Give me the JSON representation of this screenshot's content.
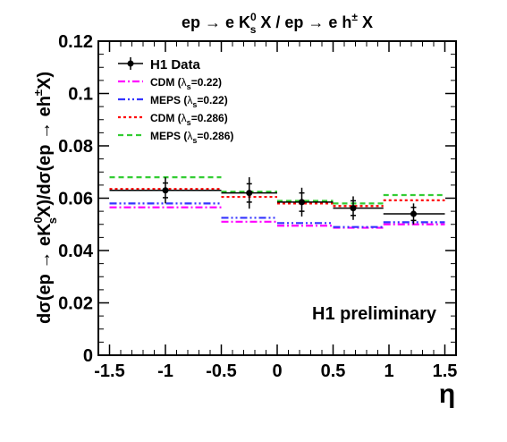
{
  "chart_data": {
    "type": "step",
    "title_parts": [
      "ep → e K",
      "0",
      "s",
      " X / ep → e h",
      "±",
      " X"
    ],
    "xlabel": "η",
    "ylabel_parts": [
      "dσ(ep → eK",
      "0",
      "s",
      "X)/dσ(ep → eh",
      "±",
      "X)"
    ],
    "xlim": [
      -1.6,
      1.6
    ],
    "ylim": [
      0,
      0.12
    ],
    "xticks": [
      -1.5,
      -1,
      -0.5,
      0,
      0.5,
      1,
      1.5
    ],
    "xtick_labels": [
      "-1.5",
      "-1",
      "-0.5",
      "0",
      "0.5",
      "1",
      "1.5"
    ],
    "yticks": [
      0,
      0.02,
      0.04,
      0.06,
      0.08,
      0.1,
      0.12
    ],
    "ytick_labels": [
      "0",
      "0.02",
      "0.04",
      "0.06",
      "0.08",
      "0.1",
      "0.12"
    ],
    "bin_edges": [
      -1.5,
      -0.5,
      0,
      0.5,
      0.95,
      1.5
    ],
    "data": {
      "name": "H1 Data",
      "x": [
        -1.0,
        -0.25,
        0.22,
        0.68,
        1.22
      ],
      "y": [
        0.063,
        0.062,
        0.0585,
        0.0562,
        0.054
      ],
      "err_stat": [
        0.0028,
        0.0035,
        0.0035,
        0.0028,
        0.0025
      ],
      "err_tot": [
        0.005,
        0.006,
        0.0055,
        0.0045,
        0.004
      ]
    },
    "series": [
      {
        "legend_name": "CDM",
        "legend_param": "0.22",
        "style": "dashdot",
        "color": "#ff00ff",
        "values": [
          0.0565,
          0.051,
          0.0495,
          0.0487,
          0.05
        ]
      },
      {
        "legend_name": "MEPS",
        "legend_param": "0.22",
        "style": "dashdotdot",
        "color": "#3333ff",
        "values": [
          0.058,
          0.0525,
          0.0505,
          0.049,
          0.0508
        ]
      },
      {
        "legend_name": "CDM",
        "legend_param": "0.286",
        "style": "dotted",
        "color": "#ff0000",
        "values": [
          0.0635,
          0.0605,
          0.058,
          0.057,
          0.0592
        ]
      },
      {
        "legend_name": "MEPS",
        "legend_param": "0.286",
        "style": "dashed",
        "color": "#33cc33",
        "values": [
          0.068,
          0.0625,
          0.059,
          0.058,
          0.0612
        ]
      }
    ],
    "legend_lambda": "λ",
    "legend_lambda_sub": "s",
    "legend_position": "top-left",
    "annotation": "H1 preliminary"
  }
}
